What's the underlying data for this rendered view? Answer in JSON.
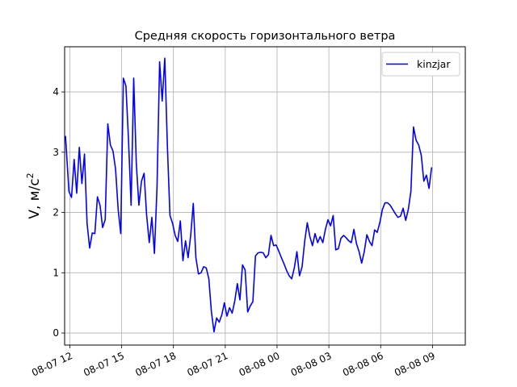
{
  "chart_data": {
    "type": "line",
    "title": "Средняя скорость горизонтального ветра",
    "xlabel": "",
    "ylabel_base": "V, м/с",
    "ylabel_sup": "2",
    "grid": true,
    "legend_position": "top-right",
    "x_unit": "hours since 08-07 00:00",
    "xlim": [
      11.7,
      34.9
    ],
    "ylim": [
      -0.2,
      4.75
    ],
    "x_ticks": [
      {
        "value": 12,
        "label": "08-07 12"
      },
      {
        "value": 15,
        "label": "08-07 15"
      },
      {
        "value": 18,
        "label": "08-07 18"
      },
      {
        "value": 21,
        "label": "08-07 21"
      },
      {
        "value": 24,
        "label": "08-08 00"
      },
      {
        "value": 27,
        "label": "08-08 03"
      },
      {
        "value": 30,
        "label": "08-08 06"
      },
      {
        "value": 33,
        "label": "08-08 09"
      }
    ],
    "y_ticks": [
      {
        "value": 0,
        "label": "0"
      },
      {
        "value": 1,
        "label": "1"
      },
      {
        "value": 2,
        "label": "2"
      },
      {
        "value": 3,
        "label": "3"
      },
      {
        "value": 4,
        "label": "4"
      }
    ],
    "series": [
      {
        "name": "kinzjar",
        "color": "#0000ff",
        "points": [
          [
            11.75,
            3.27
          ],
          [
            11.95,
            2.35
          ],
          [
            12.1,
            2.25
          ],
          [
            12.25,
            2.88
          ],
          [
            12.4,
            2.32
          ],
          [
            12.55,
            3.08
          ],
          [
            12.7,
            2.48
          ],
          [
            12.85,
            2.97
          ],
          [
            13.0,
            1.82
          ],
          [
            13.15,
            1.41
          ],
          [
            13.3,
            1.66
          ],
          [
            13.45,
            1.65
          ],
          [
            13.6,
            2.26
          ],
          [
            13.75,
            2.12
          ],
          [
            13.9,
            1.75
          ],
          [
            14.05,
            1.88
          ],
          [
            14.2,
            3.47
          ],
          [
            14.35,
            3.12
          ],
          [
            14.5,
            3.02
          ],
          [
            14.65,
            2.72
          ],
          [
            14.8,
            2.05
          ],
          [
            14.95,
            1.65
          ],
          [
            15.1,
            4.23
          ],
          [
            15.25,
            4.1
          ],
          [
            15.4,
            3.2
          ],
          [
            15.55,
            2.12
          ],
          [
            15.7,
            4.23
          ],
          [
            15.85,
            2.82
          ],
          [
            16.0,
            2.12
          ],
          [
            16.15,
            2.52
          ],
          [
            16.3,
            2.65
          ],
          [
            16.45,
            1.95
          ],
          [
            16.6,
            1.5
          ],
          [
            16.75,
            1.92
          ],
          [
            16.9,
            1.32
          ],
          [
            17.05,
            2.42
          ],
          [
            17.2,
            4.5
          ],
          [
            17.35,
            3.85
          ],
          [
            17.5,
            4.56
          ],
          [
            17.65,
            3.1
          ],
          [
            17.8,
            1.95
          ],
          [
            17.95,
            1.82
          ],
          [
            18.1,
            1.62
          ],
          [
            18.25,
            1.52
          ],
          [
            18.4,
            1.86
          ],
          [
            18.55,
            1.2
          ],
          [
            18.7,
            1.53
          ],
          [
            18.85,
            1.25
          ],
          [
            19.0,
            1.62
          ],
          [
            19.15,
            2.15
          ],
          [
            19.3,
            1.25
          ],
          [
            19.45,
            0.98
          ],
          [
            19.6,
            1.0
          ],
          [
            19.75,
            1.1
          ],
          [
            19.9,
            1.08
          ],
          [
            20.05,
            0.9
          ],
          [
            20.2,
            0.35
          ],
          [
            20.35,
            0.02
          ],
          [
            20.5,
            0.25
          ],
          [
            20.65,
            0.18
          ],
          [
            20.8,
            0.3
          ],
          [
            20.95,
            0.5
          ],
          [
            21.1,
            0.28
          ],
          [
            21.25,
            0.42
          ],
          [
            21.4,
            0.33
          ],
          [
            21.55,
            0.53
          ],
          [
            21.7,
            0.82
          ],
          [
            21.85,
            0.55
          ],
          [
            22.0,
            1.13
          ],
          [
            22.15,
            1.05
          ],
          [
            22.3,
            0.35
          ],
          [
            22.45,
            0.45
          ],
          [
            22.6,
            0.52
          ],
          [
            22.75,
            1.28
          ],
          [
            22.9,
            1.33
          ],
          [
            23.05,
            1.34
          ],
          [
            23.2,
            1.33
          ],
          [
            23.35,
            1.25
          ],
          [
            23.5,
            1.3
          ],
          [
            23.65,
            1.62
          ],
          [
            23.8,
            1.45
          ],
          [
            23.95,
            1.46
          ],
          [
            24.1,
            1.36
          ],
          [
            24.25,
            1.25
          ],
          [
            24.4,
            1.15
          ],
          [
            24.55,
            1.04
          ],
          [
            24.7,
            0.95
          ],
          [
            24.85,
            0.9
          ],
          [
            25.0,
            1.08
          ],
          [
            25.15,
            1.35
          ],
          [
            25.3,
            0.95
          ],
          [
            25.45,
            1.1
          ],
          [
            25.6,
            1.52
          ],
          [
            25.75,
            1.83
          ],
          [
            25.9,
            1.6
          ],
          [
            26.05,
            1.45
          ],
          [
            26.2,
            1.65
          ],
          [
            26.35,
            1.5
          ],
          [
            26.5,
            1.6
          ],
          [
            26.65,
            1.5
          ],
          [
            26.8,
            1.72
          ],
          [
            26.95,
            1.88
          ],
          [
            27.1,
            1.78
          ],
          [
            27.25,
            1.95
          ],
          [
            27.4,
            1.38
          ],
          [
            27.55,
            1.4
          ],
          [
            27.7,
            1.57
          ],
          [
            27.85,
            1.62
          ],
          [
            28.0,
            1.58
          ],
          [
            28.15,
            1.53
          ],
          [
            28.3,
            1.5
          ],
          [
            28.45,
            1.72
          ],
          [
            28.6,
            1.48
          ],
          [
            28.75,
            1.35
          ],
          [
            28.9,
            1.16
          ],
          [
            29.05,
            1.35
          ],
          [
            29.2,
            1.63
          ],
          [
            29.35,
            1.52
          ],
          [
            29.5,
            1.45
          ],
          [
            29.65,
            1.71
          ],
          [
            29.8,
            1.67
          ],
          [
            29.95,
            1.83
          ],
          [
            30.1,
            2.05
          ],
          [
            30.25,
            2.16
          ],
          [
            30.4,
            2.16
          ],
          [
            30.55,
            2.12
          ],
          [
            30.7,
            2.05
          ],
          [
            30.85,
            1.98
          ],
          [
            31.0,
            1.92
          ],
          [
            31.15,
            1.94
          ],
          [
            31.3,
            2.07
          ],
          [
            31.45,
            1.87
          ],
          [
            31.6,
            2.05
          ],
          [
            31.75,
            2.35
          ],
          [
            31.9,
            3.42
          ],
          [
            32.05,
            3.2
          ],
          [
            32.2,
            3.12
          ],
          [
            32.35,
            2.95
          ],
          [
            32.5,
            2.52
          ],
          [
            32.65,
            2.62
          ],
          [
            32.8,
            2.4
          ],
          [
            32.95,
            2.75
          ]
        ]
      }
    ]
  }
}
